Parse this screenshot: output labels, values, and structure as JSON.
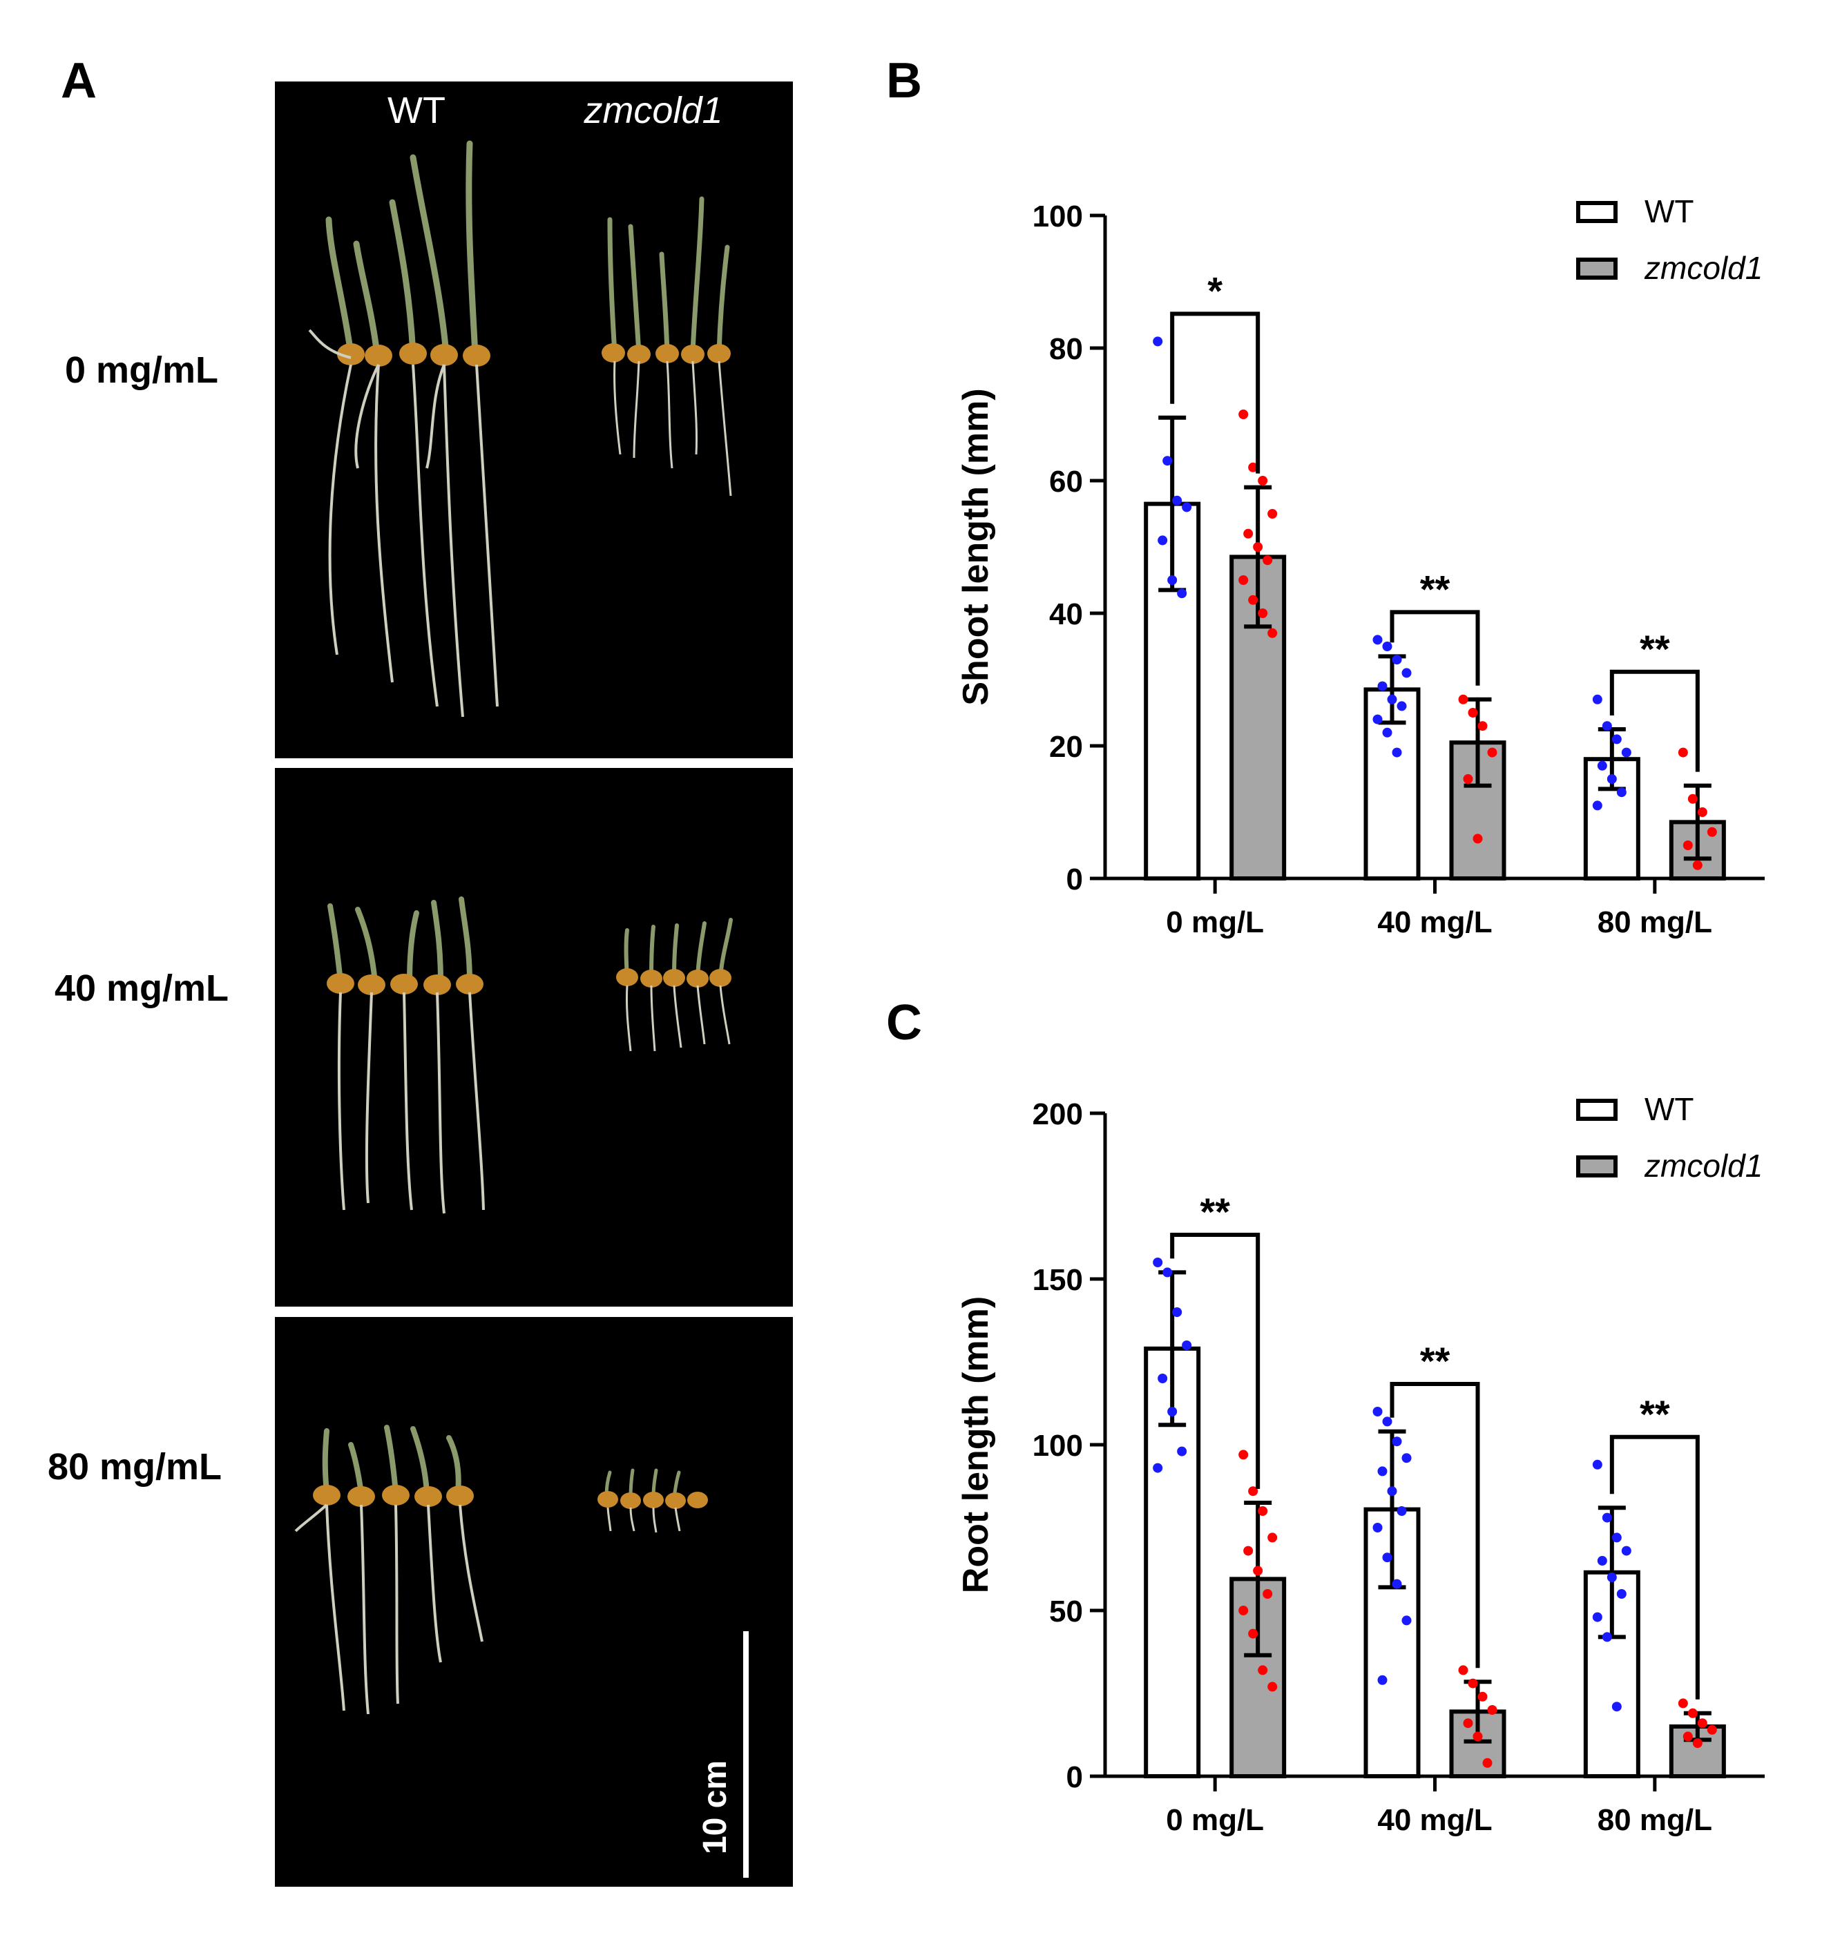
{
  "panels": {
    "a": "A",
    "b": "B",
    "c": "C"
  },
  "photo": {
    "genotype_wt": "WT",
    "genotype_mut": "zmcold1",
    "rows": [
      "0 mg/mL",
      "40 mg/mL",
      "80 mg/mL"
    ],
    "scale_bar": "10 cm"
  },
  "colors": {
    "wt_fill": "#ffffff",
    "mut_fill": "#a6a6a6",
    "wt_dots": "#1a1aff",
    "mut_dots": "#ff0000"
  },
  "chart_data": [
    {
      "type": "bar",
      "panel": "B",
      "ylabel": "Shoot length (mm)",
      "xlabel": "",
      "categories": [
        "0 mg/L",
        "40 mg/L",
        "80 mg/L"
      ],
      "ylim": [
        0,
        100
      ],
      "yticks": [
        0,
        20,
        40,
        60,
        80,
        100
      ],
      "legend": [
        "WT",
        "zmcold1"
      ],
      "legend_position": "top-right",
      "series": [
        {
          "name": "WT",
          "values": [
            56.5,
            28.5,
            18
          ],
          "sd": [
            13,
            5,
            4.5
          ],
          "points": [
            [
              81,
              63,
              57,
              56,
              51,
              45,
              43
            ],
            [
              36,
              35,
              33,
              31,
              29,
              27,
              26,
              24,
              22,
              19
            ],
            [
              27,
              23,
              21,
              19,
              17,
              15,
              13,
              11
            ]
          ]
        },
        {
          "name": "zmcold1",
          "values": [
            48.5,
            20.5,
            8.5
          ],
          "sd": [
            10.5,
            6.5,
            5.5
          ],
          "points": [
            [
              70,
              62,
              60,
              55,
              52,
              50,
              48,
              45,
              42,
              40,
              37
            ],
            [
              27,
              25,
              23,
              19,
              15,
              6
            ],
            [
              19,
              12,
              10,
              7,
              5,
              2
            ]
          ]
        }
      ],
      "significance": [
        "*",
        "**",
        "**"
      ]
    },
    {
      "type": "bar",
      "panel": "C",
      "ylabel": "Root length (mm)",
      "xlabel": "",
      "categories": [
        "0 mg/L",
        "40 mg/L",
        "80 mg/L"
      ],
      "ylim": [
        0,
        200
      ],
      "yticks": [
        0,
        50,
        100,
        150,
        200
      ],
      "legend": [
        "WT",
        "zmcold1"
      ],
      "legend_position": "top-right",
      "series": [
        {
          "name": "WT",
          "values": [
            129,
            80.5,
            61.5
          ],
          "sd": [
            23,
            23.5,
            19.5
          ],
          "points": [
            [
              155,
              152,
              140,
              130,
              120,
              110,
              98,
              93
            ],
            [
              110,
              107,
              101,
              96,
              92,
              86,
              80,
              75,
              66,
              58,
              47,
              29
            ],
            [
              94,
              78,
              72,
              68,
              65,
              60,
              55,
              48,
              42,
              21
            ]
          ]
        },
        {
          "name": "zmcold1",
          "values": [
            59.5,
            19.5,
            15
          ],
          "sd": [
            23,
            9,
            4
          ],
          "points": [
            [
              97,
              86,
              80,
              72,
              68,
              62,
              55,
              50,
              43,
              32,
              27
            ],
            [
              32,
              28,
              24,
              20,
              16,
              12,
              4
            ],
            [
              22,
              19,
              16,
              14,
              12,
              10
            ]
          ]
        }
      ],
      "significance": [
        "**",
        "**",
        "**"
      ]
    }
  ]
}
